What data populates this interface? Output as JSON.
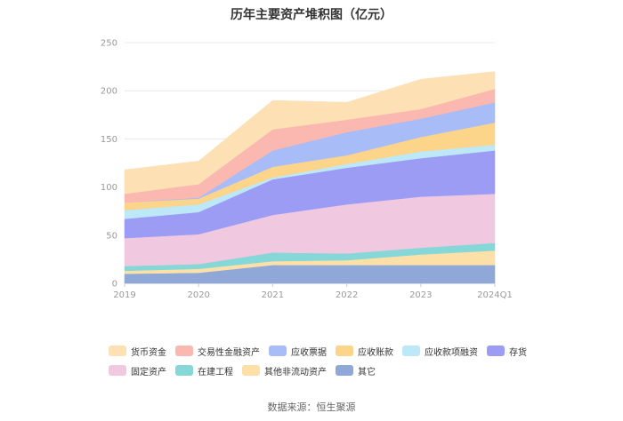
{
  "chart_data": {
    "type": "area",
    "title": "历年主要资产堆积图（亿元）",
    "categories": [
      "2019",
      "2020",
      "2021",
      "2022",
      "2023",
      "2024Q1"
    ],
    "ylim": [
      0,
      250
    ],
    "yticks": [
      0,
      50,
      100,
      150,
      200,
      250
    ],
    "stacked": true,
    "legend_position": "bottom",
    "series": [
      {
        "name": "其它",
        "color": "#8fa8d8",
        "values": [
          10,
          11,
          19,
          19,
          19,
          19
        ]
      },
      {
        "name": "其他非流动资产",
        "color": "#fde0a8",
        "values": [
          3,
          4,
          4,
          5,
          11,
          15
        ]
      },
      {
        "name": "在建工程",
        "color": "#86d8d8",
        "values": [
          5,
          5,
          9,
          7,
          7,
          8
        ]
      },
      {
        "name": "固定资产",
        "color": "#f0c8e0",
        "values": [
          29,
          31,
          39,
          51,
          53,
          51
        ]
      },
      {
        "name": "存货",
        "color": "#9c9cf4",
        "values": [
          20,
          23,
          37,
          38,
          40,
          45
        ]
      },
      {
        "name": "应收款项融资",
        "color": "#bde8f8",
        "values": [
          9,
          8,
          2,
          4,
          7,
          6
        ]
      },
      {
        "name": "应收账款",
        "color": "#fcd48a",
        "values": [
          8,
          6,
          11,
          9,
          15,
          23
        ]
      },
      {
        "name": "应收票据",
        "color": "#a8bcf8",
        "values": [
          0,
          1,
          17,
          24,
          19,
          21
        ]
      },
      {
        "name": "交易性金融资产",
        "color": "#fbb8b0",
        "values": [
          9,
          14,
          22,
          13,
          10,
          14
        ]
      },
      {
        "name": "货币资金",
        "color": "#fde0b4",
        "values": [
          25,
          24,
          30,
          18,
          31,
          18
        ]
      }
    ],
    "legend_order": [
      "货币资金",
      "交易性金融资产",
      "应收票据",
      "应收账款",
      "应收款项融资",
      "存货",
      "固定资产",
      "在建工程",
      "其他非流动资产",
      "其它"
    ]
  },
  "source": "数据来源：恒生聚源"
}
